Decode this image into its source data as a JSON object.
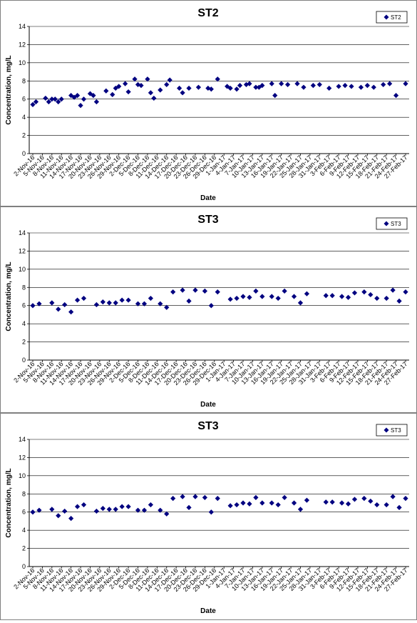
{
  "chart_data": [
    {
      "type": "scatter",
      "title": "ST2",
      "xlabel": "Date",
      "ylabel": "Concentration, mg/L",
      "ylim": [
        0,
        14
      ],
      "yticks": [
        "0",
        "2",
        "4",
        "6",
        "8",
        "10",
        "12",
        "14"
      ],
      "x_ticks": [
        "2-Nov-16",
        "5-Nov-16",
        "8-Nov-16",
        "11-Nov-16",
        "14-Nov-16",
        "17-Nov-16",
        "20-Nov-16",
        "23-Nov-16",
        "26-Nov-16",
        "29-Nov-16",
        "2-Dec-16",
        "5-Dec-16",
        "8-Dec-16",
        "11-Dec-16",
        "14-Dec-16",
        "17-Dec-16",
        "20-Dec-16",
        "23-Dec-16",
        "26-Dec-16",
        "29-Dec-16",
        "1-Jan-17",
        "4-Jan-17",
        "7-Jan-17",
        "10-Jan-17",
        "13-Jan-17",
        "16-Jan-17",
        "19-Jan-17",
        "22-Jan-17",
        "25-Jan-17",
        "28-Jan-17",
        "31-Jan-17",
        "3-Feb-17",
        "6-Feb-17",
        "9-Feb-17",
        "12-Feb-17",
        "15-Feb-17",
        "18-Feb-17",
        "21-Feb-17",
        "24-Feb-17",
        "27-Feb-17"
      ],
      "x": [
        "2-Nov-16",
        "3-Nov-16",
        "6-Nov-16",
        "7-Nov-16",
        "8-Nov-16",
        "9-Nov-16",
        "10-Nov-16",
        "11-Nov-16",
        "14-Nov-16",
        "15-Nov-16",
        "16-Nov-16",
        "17-Nov-16",
        "18-Nov-16",
        "20-Nov-16",
        "21-Nov-16",
        "22-Nov-16",
        "25-Nov-16",
        "27-Nov-16",
        "28-Nov-16",
        "29-Nov-16",
        "1-Dec-16",
        "2-Dec-16",
        "4-Dec-16",
        "5-Dec-16",
        "6-Dec-16",
        "8-Dec-16",
        "9-Dec-16",
        "10-Dec-16",
        "12-Dec-16",
        "14-Dec-16",
        "15-Dec-16",
        "18-Dec-16",
        "19-Dec-16",
        "21-Dec-16",
        "24-Dec-16",
        "27-Dec-16",
        "28-Dec-16",
        "30-Dec-16",
        "2-Jan-17",
        "3-Jan-17",
        "5-Jan-17",
        "6-Jan-17",
        "8-Jan-17",
        "9-Jan-17",
        "11-Jan-17",
        "12-Jan-17",
        "13-Jan-17",
        "16-Jan-17",
        "17-Jan-17",
        "19-Jan-17",
        "21-Jan-17",
        "24-Jan-17",
        "26-Jan-17",
        "29-Jan-17",
        "31-Jan-17",
        "3-Feb-17",
        "6-Feb-17",
        "8-Feb-17",
        "10-Feb-17",
        "13-Feb-17",
        "15-Feb-17",
        "17-Feb-17",
        "20-Feb-17",
        "22-Feb-17",
        "24-Feb-17",
        "27-Feb-17"
      ],
      "values": [
        5.4,
        5.7,
        6.1,
        5.7,
        6.0,
        6.0,
        5.7,
        6.0,
        6.4,
        6.2,
        6.4,
        5.3,
        6.0,
        6.6,
        6.4,
        5.7,
        6.9,
        6.5,
        7.2,
        7.4,
        7.7,
        6.8,
        8.2,
        7.6,
        7.5,
        8.2,
        6.7,
        6.1,
        7.0,
        7.6,
        8.1,
        7.2,
        6.7,
        7.2,
        7.3,
        7.2,
        7.1,
        8.2,
        7.4,
        7.2,
        7.1,
        7.5,
        7.6,
        7.7,
        7.3,
        7.3,
        7.5,
        7.7,
        6.4,
        7.7,
        7.6,
        7.7,
        7.3,
        7.5,
        7.6,
        7.2,
        7.4,
        7.5,
        7.4,
        7.3,
        7.5,
        7.3,
        7.6,
        7.7,
        6.4,
        7.7
      ],
      "series": [
        {
          "name": "ST2",
          "color": "#000080",
          "marker": "diamond"
        }
      ],
      "grid": "horizontal",
      "legend": "top-right"
    },
    {
      "type": "scatter",
      "title": "ST3",
      "xlabel": "Date",
      "ylabel": "Concentration, mg/L",
      "ylim": [
        0,
        14
      ],
      "yticks": [
        "0",
        "2",
        "4",
        "6",
        "8",
        "10",
        "12",
        "14"
      ],
      "x_ticks": [
        "2-Nov-16",
        "5-Nov-16",
        "8-Nov-16",
        "11-Nov-16",
        "14-Nov-16",
        "17-Nov-16",
        "20-Nov-16",
        "23-Nov-16",
        "26-Nov-16",
        "29-Nov-16",
        "2-Dec-16",
        "5-Dec-16",
        "8-Dec-16",
        "11-Dec-16",
        "14-Dec-16",
        "17-Dec-16",
        "20-Dec-16",
        "23-Dec-16",
        "26-Dec-16",
        "29-Dec-16",
        "1-Jan-17",
        "4-Jan-17",
        "7-Jan-17",
        "10-Jan-17",
        "13-Jan-17",
        "16-Jan-17",
        "19-Jan-17",
        "22-Jan-17",
        "25-Jan-17",
        "28-Jan-17",
        "31-Jan-17",
        "3-Feb-17",
        "6-Feb-17",
        "9-Feb-17",
        "12-Feb-17",
        "15-Feb-17",
        "18-Feb-17",
        "21-Feb-17",
        "24-Feb-17",
        "27-Feb-17"
      ],
      "x": [
        "2-Nov-16",
        "4-Nov-16",
        "8-Nov-16",
        "10-Nov-16",
        "12-Nov-16",
        "14-Nov-16",
        "16-Nov-16",
        "18-Nov-16",
        "22-Nov-16",
        "24-Nov-16",
        "26-Nov-16",
        "28-Nov-16",
        "30-Nov-16",
        "2-Dec-16",
        "5-Dec-16",
        "7-Dec-16",
        "9-Dec-16",
        "12-Dec-16",
        "14-Dec-16",
        "16-Dec-16",
        "19-Dec-16",
        "21-Dec-16",
        "23-Dec-16",
        "26-Dec-16",
        "28-Dec-16",
        "30-Dec-16",
        "3-Jan-17",
        "5-Jan-17",
        "7-Jan-17",
        "9-Jan-17",
        "11-Jan-17",
        "13-Jan-17",
        "16-Jan-17",
        "18-Jan-17",
        "20-Jan-17",
        "23-Jan-17",
        "25-Jan-17",
        "27-Jan-17",
        "2-Feb-17",
        "4-Feb-17",
        "7-Feb-17",
        "9-Feb-17",
        "11-Feb-17",
        "14-Feb-17",
        "16-Feb-17",
        "18-Feb-17",
        "21-Feb-17",
        "23-Feb-17",
        "25-Feb-17",
        "27-Feb-17"
      ],
      "values": [
        6.0,
        6.2,
        6.3,
        5.6,
        6.1,
        5.3,
        6.6,
        6.8,
        6.1,
        6.4,
        6.3,
        6.3,
        6.6,
        6.6,
        6.2,
        6.2,
        6.8,
        6.2,
        5.8,
        7.5,
        7.7,
        6.5,
        7.7,
        7.6,
        6.0,
        7.5,
        6.7,
        6.8,
        7.0,
        6.9,
        7.6,
        7.0,
        7.0,
        6.8,
        7.6,
        7.0,
        6.3,
        7.3,
        7.1,
        7.1,
        7.0,
        6.9,
        7.4,
        7.5,
        7.2,
        6.8,
        6.8,
        7.7,
        6.5,
        7.5
      ],
      "series": [
        {
          "name": "ST3",
          "color": "#000080",
          "marker": "diamond"
        }
      ],
      "grid": "horizontal",
      "legend": "top-right"
    },
    {
      "type": "scatter",
      "title": "ST3",
      "xlabel": "Date",
      "ylabel": "Concentration, mg/L",
      "ylim": [
        0,
        14
      ],
      "yticks": [
        "0",
        "2",
        "4",
        "6",
        "8",
        "10",
        "12",
        "14"
      ],
      "x_ticks": [
        "2-Nov-16",
        "5-Nov-16",
        "8-Nov-16",
        "11-Nov-16",
        "14-Nov-16",
        "17-Nov-16",
        "20-Nov-16",
        "23-Nov-16",
        "26-Nov-16",
        "29-Nov-16",
        "2-Dec-16",
        "5-Dec-16",
        "8-Dec-16",
        "11-Dec-16",
        "14-Dec-16",
        "17-Dec-16",
        "20-Dec-16",
        "23-Dec-16",
        "26-Dec-16",
        "29-Dec-16",
        "1-Jan-17",
        "4-Jan-17",
        "7-Jan-17",
        "10-Jan-17",
        "13-Jan-17",
        "16-Jan-17",
        "19-Jan-17",
        "22-Jan-17",
        "25-Jan-17",
        "28-Jan-17",
        "31-Jan-17",
        "3-Feb-17",
        "6-Feb-17",
        "9-Feb-17",
        "12-Feb-17",
        "15-Feb-17",
        "18-Feb-17",
        "21-Feb-17",
        "24-Feb-17",
        "27-Feb-17"
      ],
      "x": [
        "2-Nov-16",
        "4-Nov-16",
        "8-Nov-16",
        "10-Nov-16",
        "12-Nov-16",
        "14-Nov-16",
        "16-Nov-16",
        "18-Nov-16",
        "22-Nov-16",
        "24-Nov-16",
        "26-Nov-16",
        "28-Nov-16",
        "30-Nov-16",
        "2-Dec-16",
        "5-Dec-16",
        "7-Dec-16",
        "9-Dec-16",
        "12-Dec-16",
        "14-Dec-16",
        "16-Dec-16",
        "19-Dec-16",
        "21-Dec-16",
        "23-Dec-16",
        "26-Dec-16",
        "28-Dec-16",
        "30-Dec-16",
        "3-Jan-17",
        "5-Jan-17",
        "7-Jan-17",
        "9-Jan-17",
        "11-Jan-17",
        "13-Jan-17",
        "16-Jan-17",
        "18-Jan-17",
        "20-Jan-17",
        "23-Jan-17",
        "25-Jan-17",
        "27-Jan-17",
        "2-Feb-17",
        "4-Feb-17",
        "7-Feb-17",
        "9-Feb-17",
        "11-Feb-17",
        "14-Feb-17",
        "16-Feb-17",
        "18-Feb-17",
        "21-Feb-17",
        "23-Feb-17",
        "25-Feb-17",
        "27-Feb-17"
      ],
      "values": [
        6.0,
        6.2,
        6.3,
        5.6,
        6.1,
        5.3,
        6.6,
        6.8,
        6.1,
        6.4,
        6.3,
        6.3,
        6.6,
        6.6,
        6.2,
        6.2,
        6.8,
        6.2,
        5.8,
        7.5,
        7.7,
        6.5,
        7.7,
        7.6,
        6.0,
        7.5,
        6.7,
        6.8,
        7.0,
        6.9,
        7.6,
        7.0,
        7.0,
        6.8,
        7.6,
        7.0,
        6.3,
        7.3,
        7.1,
        7.1,
        7.0,
        6.9,
        7.4,
        7.5,
        7.2,
        6.8,
        6.8,
        7.7,
        6.5,
        7.5
      ],
      "series": [
        {
          "name": "ST3",
          "color": "#000080",
          "marker": "diamond"
        }
      ],
      "grid": "horizontal",
      "legend": "top-right"
    }
  ]
}
